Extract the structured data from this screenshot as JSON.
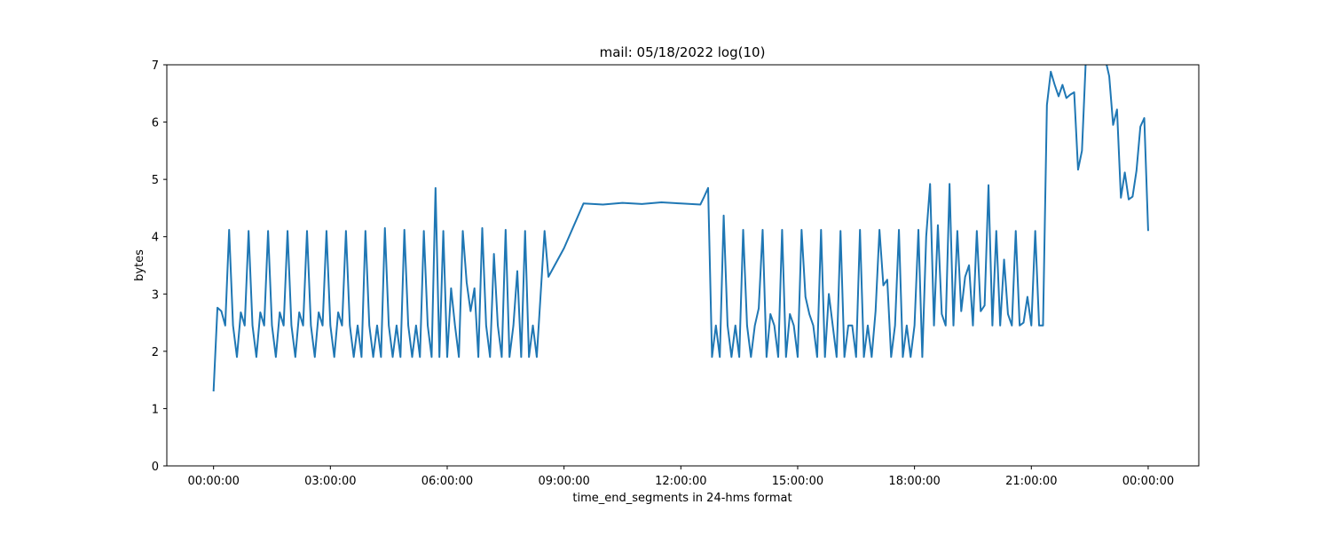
{
  "chart_data": {
    "type": "line",
    "title": "mail: 05/18/2022 log(10)",
    "xlabel": "time_end_segments in 24-hms format",
    "ylabel": "bytes",
    "x_unit": "hours",
    "xlim": [
      -1.2,
      25.3
    ],
    "ylim": [
      0,
      7
    ],
    "x_ticks": [
      {
        "value": 0,
        "label": "00:00:00"
      },
      {
        "value": 3,
        "label": "03:00:00"
      },
      {
        "value": 6,
        "label": "06:00:00"
      },
      {
        "value": 9,
        "label": "09:00:00"
      },
      {
        "value": 12,
        "label": "12:00:00"
      },
      {
        "value": 15,
        "label": "15:00:00"
      },
      {
        "value": 18,
        "label": "18:00:00"
      },
      {
        "value": 21,
        "label": "21:00:00"
      },
      {
        "value": 24,
        "label": "00:00:00"
      }
    ],
    "y_ticks": [
      0,
      1,
      2,
      3,
      4,
      5,
      6,
      7
    ],
    "grid": false,
    "line_color": "#1f77b4",
    "series": [
      {
        "x": [
          0.0,
          0.1,
          0.2,
          0.3,
          0.4,
          0.5,
          0.6,
          0.7,
          0.8,
          0.9,
          1.0,
          1.1,
          1.2,
          1.3,
          1.4,
          1.5,
          1.6,
          1.7,
          1.8,
          1.9,
          2.0,
          2.1,
          2.2,
          2.3,
          2.4,
          2.5,
          2.6,
          2.7,
          2.8,
          2.9,
          3.0,
          3.1,
          3.2,
          3.3,
          3.4,
          3.5,
          3.6,
          3.7,
          3.8,
          3.9,
          4.0,
          4.1,
          4.2,
          4.3,
          4.4,
          4.5,
          4.6,
          4.7,
          4.8,
          4.9,
          5.0,
          5.1,
          5.2,
          5.3,
          5.4,
          5.5,
          5.6,
          5.7,
          5.8,
          5.9,
          6.0,
          6.1,
          6.2,
          6.3,
          6.4,
          6.5,
          6.6,
          6.7,
          6.8,
          6.9,
          7.0,
          7.1,
          7.2,
          7.3,
          7.4,
          7.5,
          7.6,
          7.7,
          7.8,
          7.9,
          8.0,
          8.1,
          8.2,
          8.3,
          8.4,
          8.5,
          8.6,
          9.0,
          9.5,
          10.0,
          10.5,
          11.0,
          11.5,
          12.0,
          12.5,
          12.6,
          12.7,
          12.8,
          12.9,
          13.0,
          13.1,
          13.2,
          13.3,
          13.4,
          13.5,
          13.6,
          13.7,
          13.8,
          13.9,
          14.0,
          14.1,
          14.2,
          14.3,
          14.4,
          14.5,
          14.6,
          14.7,
          14.8,
          14.9,
          15.0,
          15.1,
          15.2,
          15.3,
          15.4,
          15.5,
          15.6,
          15.7,
          15.8,
          15.9,
          16.0,
          16.1,
          16.2,
          16.3,
          16.4,
          16.5,
          16.6,
          16.7,
          16.8,
          16.9,
          17.0,
          17.1,
          17.2,
          17.3,
          17.4,
          17.5,
          17.6,
          17.7,
          17.8,
          17.9,
          18.0,
          18.1,
          18.2,
          18.3,
          18.4,
          18.5,
          18.6,
          18.7,
          18.8,
          18.9,
          19.0,
          19.1,
          19.2,
          19.3,
          19.4,
          19.5,
          19.6,
          19.7,
          19.8,
          19.9,
          20.0,
          20.1,
          20.2,
          20.3,
          20.4,
          20.5,
          20.6,
          20.7,
          20.8,
          20.9,
          21.0,
          21.1,
          21.2,
          21.3,
          21.4,
          21.5,
          21.6,
          21.7,
          21.8,
          21.9,
          22.0,
          22.1,
          22.2,
          22.3,
          22.4,
          22.5,
          22.6,
          22.7,
          22.8,
          22.9,
          23.0,
          23.1,
          23.2,
          23.3,
          23.4,
          23.5,
          23.6,
          23.7,
          23.8,
          23.9,
          24.0
        ],
        "values": [
          1.3,
          2.76,
          2.7,
          2.45,
          4.12,
          2.45,
          1.9,
          2.68,
          2.45,
          4.1,
          2.45,
          1.9,
          2.68,
          2.45,
          4.1,
          2.45,
          1.9,
          2.68,
          2.45,
          4.1,
          2.45,
          1.9,
          2.68,
          2.45,
          4.1,
          2.45,
          1.9,
          2.68,
          2.45,
          4.1,
          2.45,
          1.9,
          2.68,
          2.45,
          4.1,
          2.45,
          1.9,
          2.45,
          1.9,
          4.1,
          2.45,
          1.9,
          2.45,
          1.9,
          4.15,
          2.45,
          1.9,
          2.45,
          1.9,
          4.12,
          2.45,
          1.9,
          2.45,
          1.9,
          4.1,
          2.45,
          1.9,
          4.85,
          1.9,
          4.1,
          1.9,
          3.1,
          2.45,
          1.9,
          4.1,
          3.2,
          2.7,
          3.1,
          1.9,
          4.15,
          2.45,
          1.9,
          3.7,
          2.45,
          1.9,
          4.12,
          1.9,
          2.45,
          3.4,
          1.9,
          4.1,
          1.9,
          2.45,
          1.9,
          3.0,
          4.1,
          3.3,
          3.8,
          4.58,
          4.56,
          4.59,
          4.57,
          4.6,
          4.58,
          4.56,
          4.7,
          4.85,
          1.9,
          2.45,
          1.9,
          4.37,
          2.45,
          1.9,
          2.45,
          1.9,
          4.12,
          2.45,
          1.9,
          2.45,
          2.75,
          4.12,
          1.9,
          2.65,
          2.45,
          1.9,
          4.12,
          1.9,
          2.65,
          2.45,
          1.9,
          4.12,
          2.95,
          2.65,
          2.45,
          1.9,
          4.12,
          1.9,
          3.0,
          2.45,
          1.9,
          4.1,
          1.9,
          2.45,
          2.45,
          1.9,
          4.12,
          1.9,
          2.45,
          1.9,
          2.7,
          4.12,
          3.15,
          3.25,
          1.9,
          2.45,
          4.12,
          1.9,
          2.45,
          1.9,
          2.45,
          4.12,
          1.9,
          4.0,
          4.92,
          2.45,
          4.2,
          2.65,
          2.45,
          4.92,
          2.45,
          4.1,
          2.7,
          3.3,
          3.5,
          2.45,
          4.1,
          2.7,
          2.8,
          4.9,
          2.45,
          4.1,
          2.45,
          3.6,
          2.65,
          2.45,
          4.1,
          2.45,
          2.5,
          2.95,
          2.45,
          4.1,
          2.45,
          2.45,
          6.3,
          6.88,
          6.65,
          6.45,
          6.65,
          6.42,
          6.48,
          6.52,
          5.17,
          5.5,
          7.1,
          7.3,
          7.45,
          7.4,
          7.3,
          7.1,
          6.8,
          5.95,
          6.22,
          4.68,
          5.12,
          4.65,
          4.7,
          5.15,
          5.92,
          6.07,
          4.1
        ]
      }
    ]
  }
}
